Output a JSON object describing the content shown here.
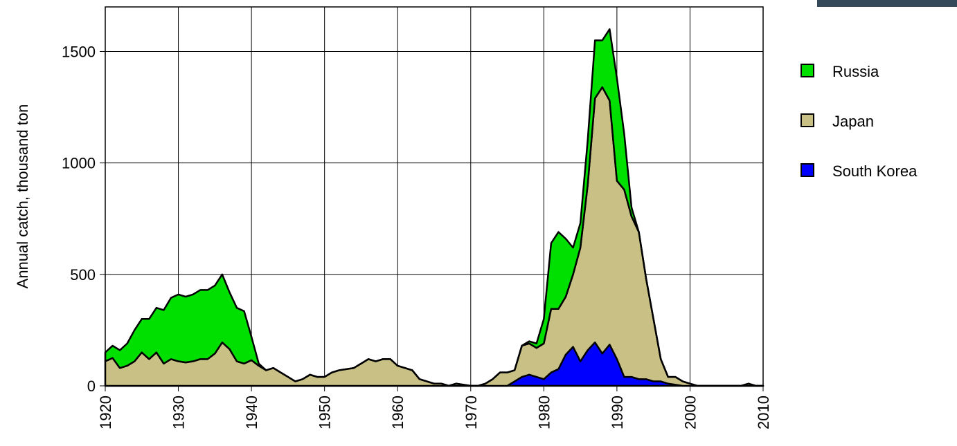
{
  "chart_data": {
    "type": "stacked_area",
    "y_label": "Annual catch, thousand ton",
    "x": [
      1920,
      1921,
      1922,
      1923,
      1924,
      1925,
      1926,
      1927,
      1928,
      1929,
      1930,
      1931,
      1932,
      1933,
      1934,
      1935,
      1936,
      1937,
      1938,
      1939,
      1940,
      1941,
      1942,
      1943,
      1944,
      1945,
      1946,
      1947,
      1948,
      1949,
      1950,
      1951,
      1952,
      1953,
      1954,
      1955,
      1956,
      1957,
      1958,
      1959,
      1960,
      1961,
      1962,
      1963,
      1964,
      1965,
      1966,
      1967,
      1968,
      1969,
      1970,
      1971,
      1972,
      1973,
      1974,
      1975,
      1976,
      1977,
      1978,
      1979,
      1980,
      1981,
      1982,
      1983,
      1984,
      1985,
      1986,
      1987,
      1988,
      1989,
      1990,
      1991,
      1992,
      1993,
      1994,
      1995,
      1996,
      1997,
      1998,
      1999,
      2000,
      2001,
      2002,
      2003,
      2004,
      2005,
      2006,
      2007,
      2008,
      2009,
      2010
    ],
    "series": [
      {
        "name": "South Korea",
        "color": "#0000ff",
        "values": [
          0,
          0,
          0,
          0,
          0,
          0,
          0,
          0,
          0,
          0,
          0,
          0,
          0,
          0,
          0,
          0,
          0,
          0,
          0,
          0,
          0,
          0,
          0,
          0,
          0,
          0,
          0,
          0,
          0,
          0,
          0,
          0,
          0,
          0,
          0,
          0,
          0,
          0,
          0,
          0,
          0,
          0,
          0,
          0,
          0,
          0,
          0,
          0,
          0,
          0,
          0,
          0,
          0,
          0,
          0,
          0,
          20,
          40,
          50,
          40,
          30,
          60,
          75,
          140,
          175,
          110,
          160,
          195,
          145,
          185,
          120,
          40,
          40,
          30,
          30,
          20,
          20,
          10,
          5,
          0,
          0,
          0,
          0,
          0,
          0,
          0,
          0,
          0,
          0,
          0,
          0
        ]
      },
      {
        "name": "Japan",
        "color": "#c8c084",
        "values": [
          110,
          125,
          80,
          90,
          110,
          150,
          120,
          150,
          100,
          120,
          110,
          105,
          110,
          120,
          120,
          145,
          195,
          165,
          110,
          100,
          115,
          90,
          70,
          80,
          60,
          40,
          20,
          30,
          50,
          40,
          40,
          60,
          70,
          75,
          80,
          100,
          120,
          110,
          120,
          120,
          90,
          80,
          70,
          30,
          20,
          10,
          10,
          0,
          10,
          5,
          0,
          0,
          10,
          30,
          60,
          60,
          50,
          140,
          140,
          130,
          160,
          285,
          270,
          260,
          325,
          510,
          740,
          1095,
          1195,
          1095,
          800,
          840,
          720,
          660,
          450,
          280,
          100,
          30,
          35,
          20,
          10,
          0,
          0,
          0,
          0,
          0,
          0,
          0,
          10,
          0,
          0
        ]
      },
      {
        "name": "Russia",
        "color": "#00e000",
        "values": [
          40,
          55,
          80,
          100,
          140,
          150,
          180,
          200,
          240,
          275,
          300,
          295,
          300,
          310,
          310,
          305,
          305,
          255,
          240,
          235,
          105,
          10,
          0,
          0,
          0,
          0,
          0,
          0,
          0,
          0,
          0,
          0,
          0,
          0,
          0,
          0,
          0,
          0,
          0,
          0,
          0,
          0,
          0,
          0,
          0,
          0,
          0,
          0,
          0,
          0,
          0,
          0,
          0,
          0,
          0,
          0,
          0,
          0,
          10,
          20,
          110,
          295,
          345,
          260,
          120,
          110,
          200,
          260,
          210,
          320,
          460,
          250,
          40,
          0,
          0,
          0,
          0,
          0,
          0,
          0,
          0,
          0,
          0,
          0,
          0,
          0,
          0,
          0,
          0,
          0,
          0
        ]
      }
    ],
    "xlim": [
      1920,
      2010
    ],
    "xticks": [
      1920,
      1930,
      1940,
      1950,
      1960,
      1970,
      1980,
      1990,
      2000,
      2010
    ],
    "ylim": [
      0,
      1700
    ],
    "yticks": [
      0,
      500,
      1000,
      1500
    ],
    "grid": true
  }
}
